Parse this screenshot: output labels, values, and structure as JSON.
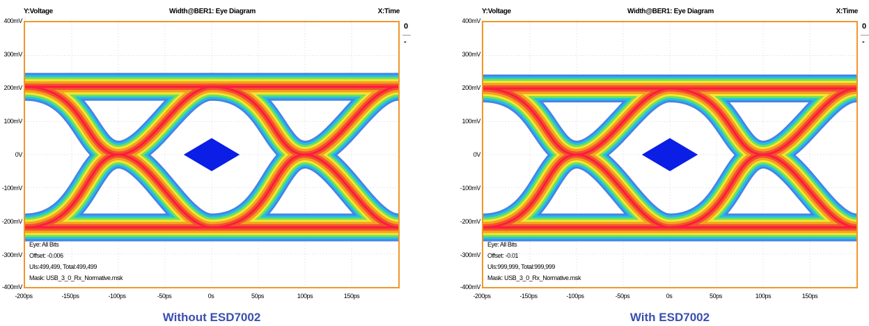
{
  "chart_data": [
    {
      "type": "eye-diagram",
      "y_axis_label": "Y:Voltage",
      "x_axis_label": "X:Time",
      "title": "Width@BER1: Eye Diagram",
      "caption": "Without ESD7002",
      "yticks": [
        "400mV",
        "300mV",
        "200mV",
        "100mV",
        "0V",
        "-100mV",
        "-200mV",
        "-300mV",
        "-400mV"
      ],
      "xticks": [
        "-200ps",
        "-150ps",
        "-100ps",
        "-50ps",
        "0s",
        "50ps",
        "100ps",
        "150ps"
      ],
      "xlim_ps": [
        -200,
        200
      ],
      "ylim_mV": [
        -400,
        400
      ],
      "high_level_mV": 205,
      "low_level_mV": -220,
      "crossings_ps": [
        -100,
        100
      ],
      "mask": {
        "name": "USB_3_0_Rx_Normative.msk",
        "center_ps": 0,
        "center_mV": 0,
        "half_width_ps": 30,
        "half_height_mV": 50
      },
      "info": [
        "Eye: All Bits",
        "Offset: -0.006",
        "UIs:499,499, Total:499,499",
        "Mask: USB_3_0_Rx_Normative.msk"
      ],
      "side_controls": [
        "0",
        "-"
      ]
    },
    {
      "type": "eye-diagram",
      "y_axis_label": "Y:Voltage",
      "x_axis_label": "X:Time",
      "title": "Width@BER1: Eye Diagram",
      "caption": "With ESD7002",
      "yticks": [
        "400mV",
        "300mV",
        "200mV",
        "100mV",
        "0V",
        "-100mV",
        "-200mV",
        "-300mV",
        "-400mV"
      ],
      "xticks": [
        "-200ps",
        "-150ps",
        "-100ps",
        "-50ps",
        "0s",
        "50ps",
        "100ps",
        "150ps"
      ],
      "xlim_ps": [
        -200,
        200
      ],
      "ylim_mV": [
        -400,
        400
      ],
      "high_level_mV": 200,
      "low_level_mV": -220,
      "crossings_ps": [
        -100,
        100
      ],
      "mask": {
        "name": "USB_3_0_Rx_Normative.msk",
        "center_ps": 0,
        "center_mV": 0,
        "half_width_ps": 30,
        "half_height_mV": 50
      },
      "info": [
        "Eye: All Bits",
        "Offset: -0.01",
        "UIs:999,999, Total:999,999",
        "Mask: USB_3_0_Rx_Normative.msk"
      ],
      "side_controls": [
        "0",
        "-"
      ]
    }
  ],
  "colors": {
    "frame": "#f0962a",
    "mask": "#0a1ee6",
    "caption": "#3a4fb0",
    "density": [
      "#2a6ee0",
      "#20c0e8",
      "#6ee05a",
      "#f2e830",
      "#f5a020",
      "#f0542a",
      "#ff1a40"
    ]
  }
}
